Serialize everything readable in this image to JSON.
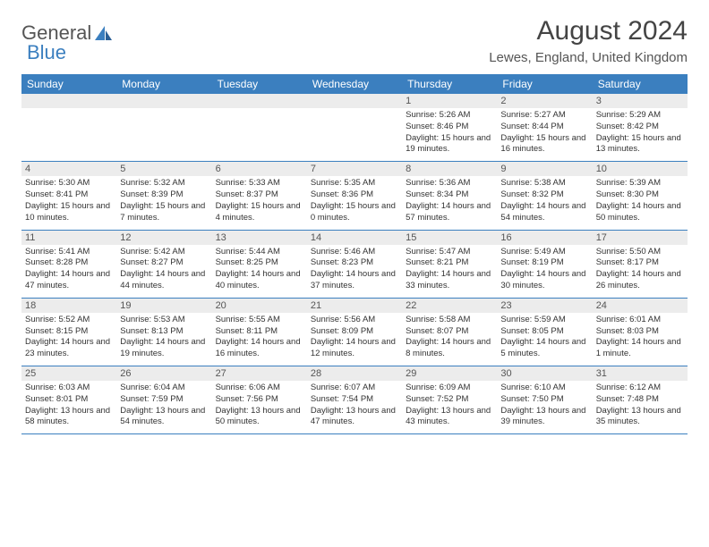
{
  "logo": {
    "part1": "General",
    "part2": "Blue"
  },
  "title": "August 2024",
  "location": "Lewes, England, United Kingdom",
  "colors": {
    "header_bg": "#3b7fbf",
    "header_text": "#ffffff",
    "date_bar_bg": "#ececec",
    "body_text": "#333333",
    "rule": "#3b7fbf"
  },
  "day_names": [
    "Sunday",
    "Monday",
    "Tuesday",
    "Wednesday",
    "Thursday",
    "Friday",
    "Saturday"
  ],
  "weeks": [
    [
      {
        "date": "",
        "sunrise": "",
        "sunset": "",
        "daylight": ""
      },
      {
        "date": "",
        "sunrise": "",
        "sunset": "",
        "daylight": ""
      },
      {
        "date": "",
        "sunrise": "",
        "sunset": "",
        "daylight": ""
      },
      {
        "date": "",
        "sunrise": "",
        "sunset": "",
        "daylight": ""
      },
      {
        "date": "1",
        "sunrise": "Sunrise: 5:26 AM",
        "sunset": "Sunset: 8:46 PM",
        "daylight": "Daylight: 15 hours and 19 minutes."
      },
      {
        "date": "2",
        "sunrise": "Sunrise: 5:27 AM",
        "sunset": "Sunset: 8:44 PM",
        "daylight": "Daylight: 15 hours and 16 minutes."
      },
      {
        "date": "3",
        "sunrise": "Sunrise: 5:29 AM",
        "sunset": "Sunset: 8:42 PM",
        "daylight": "Daylight: 15 hours and 13 minutes."
      }
    ],
    [
      {
        "date": "4",
        "sunrise": "Sunrise: 5:30 AM",
        "sunset": "Sunset: 8:41 PM",
        "daylight": "Daylight: 15 hours and 10 minutes."
      },
      {
        "date": "5",
        "sunrise": "Sunrise: 5:32 AM",
        "sunset": "Sunset: 8:39 PM",
        "daylight": "Daylight: 15 hours and 7 minutes."
      },
      {
        "date": "6",
        "sunrise": "Sunrise: 5:33 AM",
        "sunset": "Sunset: 8:37 PM",
        "daylight": "Daylight: 15 hours and 4 minutes."
      },
      {
        "date": "7",
        "sunrise": "Sunrise: 5:35 AM",
        "sunset": "Sunset: 8:36 PM",
        "daylight": "Daylight: 15 hours and 0 minutes."
      },
      {
        "date": "8",
        "sunrise": "Sunrise: 5:36 AM",
        "sunset": "Sunset: 8:34 PM",
        "daylight": "Daylight: 14 hours and 57 minutes."
      },
      {
        "date": "9",
        "sunrise": "Sunrise: 5:38 AM",
        "sunset": "Sunset: 8:32 PM",
        "daylight": "Daylight: 14 hours and 54 minutes."
      },
      {
        "date": "10",
        "sunrise": "Sunrise: 5:39 AM",
        "sunset": "Sunset: 8:30 PM",
        "daylight": "Daylight: 14 hours and 50 minutes."
      }
    ],
    [
      {
        "date": "11",
        "sunrise": "Sunrise: 5:41 AM",
        "sunset": "Sunset: 8:28 PM",
        "daylight": "Daylight: 14 hours and 47 minutes."
      },
      {
        "date": "12",
        "sunrise": "Sunrise: 5:42 AM",
        "sunset": "Sunset: 8:27 PM",
        "daylight": "Daylight: 14 hours and 44 minutes."
      },
      {
        "date": "13",
        "sunrise": "Sunrise: 5:44 AM",
        "sunset": "Sunset: 8:25 PM",
        "daylight": "Daylight: 14 hours and 40 minutes."
      },
      {
        "date": "14",
        "sunrise": "Sunrise: 5:46 AM",
        "sunset": "Sunset: 8:23 PM",
        "daylight": "Daylight: 14 hours and 37 minutes."
      },
      {
        "date": "15",
        "sunrise": "Sunrise: 5:47 AM",
        "sunset": "Sunset: 8:21 PM",
        "daylight": "Daylight: 14 hours and 33 minutes."
      },
      {
        "date": "16",
        "sunrise": "Sunrise: 5:49 AM",
        "sunset": "Sunset: 8:19 PM",
        "daylight": "Daylight: 14 hours and 30 minutes."
      },
      {
        "date": "17",
        "sunrise": "Sunrise: 5:50 AM",
        "sunset": "Sunset: 8:17 PM",
        "daylight": "Daylight: 14 hours and 26 minutes."
      }
    ],
    [
      {
        "date": "18",
        "sunrise": "Sunrise: 5:52 AM",
        "sunset": "Sunset: 8:15 PM",
        "daylight": "Daylight: 14 hours and 23 minutes."
      },
      {
        "date": "19",
        "sunrise": "Sunrise: 5:53 AM",
        "sunset": "Sunset: 8:13 PM",
        "daylight": "Daylight: 14 hours and 19 minutes."
      },
      {
        "date": "20",
        "sunrise": "Sunrise: 5:55 AM",
        "sunset": "Sunset: 8:11 PM",
        "daylight": "Daylight: 14 hours and 16 minutes."
      },
      {
        "date": "21",
        "sunrise": "Sunrise: 5:56 AM",
        "sunset": "Sunset: 8:09 PM",
        "daylight": "Daylight: 14 hours and 12 minutes."
      },
      {
        "date": "22",
        "sunrise": "Sunrise: 5:58 AM",
        "sunset": "Sunset: 8:07 PM",
        "daylight": "Daylight: 14 hours and 8 minutes."
      },
      {
        "date": "23",
        "sunrise": "Sunrise: 5:59 AM",
        "sunset": "Sunset: 8:05 PM",
        "daylight": "Daylight: 14 hours and 5 minutes."
      },
      {
        "date": "24",
        "sunrise": "Sunrise: 6:01 AM",
        "sunset": "Sunset: 8:03 PM",
        "daylight": "Daylight: 14 hours and 1 minute."
      }
    ],
    [
      {
        "date": "25",
        "sunrise": "Sunrise: 6:03 AM",
        "sunset": "Sunset: 8:01 PM",
        "daylight": "Daylight: 13 hours and 58 minutes."
      },
      {
        "date": "26",
        "sunrise": "Sunrise: 6:04 AM",
        "sunset": "Sunset: 7:59 PM",
        "daylight": "Daylight: 13 hours and 54 minutes."
      },
      {
        "date": "27",
        "sunrise": "Sunrise: 6:06 AM",
        "sunset": "Sunset: 7:56 PM",
        "daylight": "Daylight: 13 hours and 50 minutes."
      },
      {
        "date": "28",
        "sunrise": "Sunrise: 6:07 AM",
        "sunset": "Sunset: 7:54 PM",
        "daylight": "Daylight: 13 hours and 47 minutes."
      },
      {
        "date": "29",
        "sunrise": "Sunrise: 6:09 AM",
        "sunset": "Sunset: 7:52 PM",
        "daylight": "Daylight: 13 hours and 43 minutes."
      },
      {
        "date": "30",
        "sunrise": "Sunrise: 6:10 AM",
        "sunset": "Sunset: 7:50 PM",
        "daylight": "Daylight: 13 hours and 39 minutes."
      },
      {
        "date": "31",
        "sunrise": "Sunrise: 6:12 AM",
        "sunset": "Sunset: 7:48 PM",
        "daylight": "Daylight: 13 hours and 35 minutes."
      }
    ]
  ]
}
